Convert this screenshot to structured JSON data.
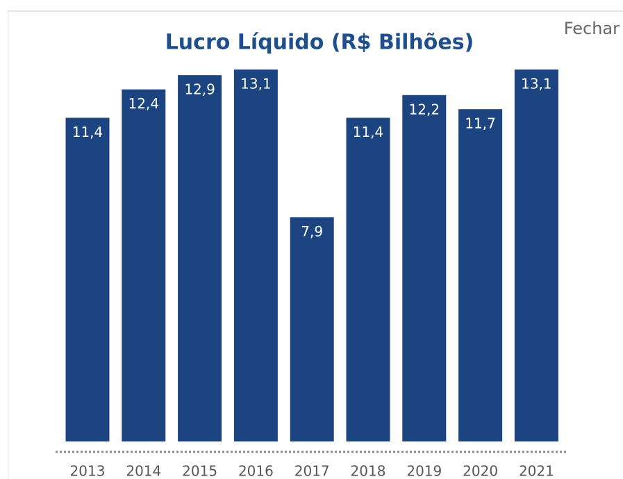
{
  "close_button": "Fechar",
  "chart_data": {
    "type": "bar",
    "title": "Lucro Líquido (R$ Bilhões)",
    "categories": [
      "2013",
      "2014",
      "2015",
      "2016",
      "2017",
      "2018",
      "2019",
      "2020",
      "2021"
    ],
    "values": [
      11.4,
      12.4,
      12.9,
      13.1,
      7.9,
      11.4,
      12.2,
      11.7,
      13.1
    ],
    "value_labels": [
      "11,4",
      "12,4",
      "12,9",
      "13,1",
      "7,9",
      "11,4",
      "12,2",
      "11,7",
      "13,1"
    ],
    "color": "#1b4480"
  }
}
